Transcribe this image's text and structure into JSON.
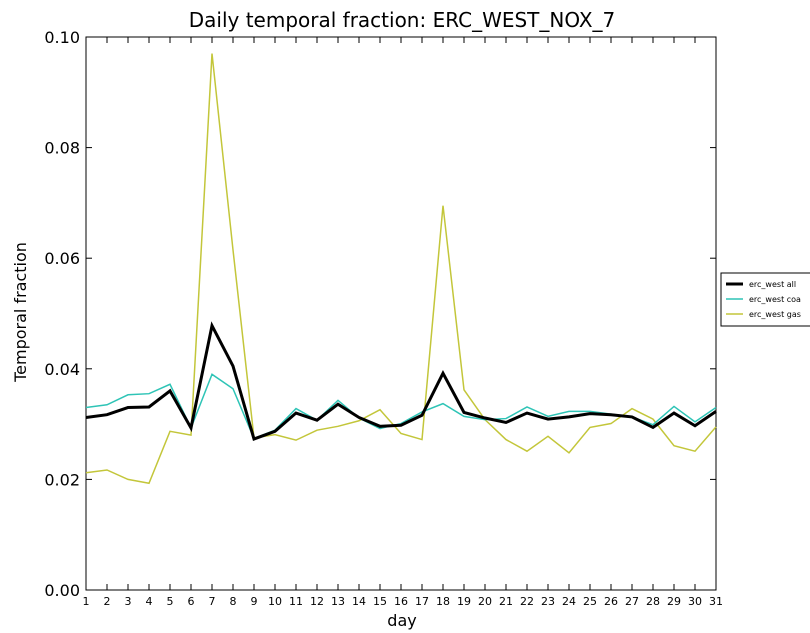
{
  "chart_data": {
    "type": "line",
    "title": "Daily temporal fraction: ERC_WEST_NOX_7",
    "xlabel": "day",
    "ylabel": "Temporal fraction",
    "xlim": [
      1,
      31
    ],
    "ylim": [
      0.0,
      0.1
    ],
    "x_ticks": [
      "1",
      "2",
      "3",
      "4",
      "5",
      "6",
      "7",
      "8",
      "9",
      "10",
      "11",
      "12",
      "13",
      "14",
      "15",
      "16",
      "17",
      "18",
      "19",
      "20",
      "21",
      "22",
      "23",
      "24",
      "25",
      "26",
      "27",
      "28",
      "29",
      "30",
      "31"
    ],
    "y_ticks": [
      "0.00",
      "0.02",
      "0.04",
      "0.06",
      "0.08",
      "0.10"
    ],
    "legend_position": "right (outside plot)",
    "grid": false,
    "x": [
      1,
      2,
      3,
      4,
      5,
      6,
      7,
      8,
      9,
      10,
      11,
      12,
      13,
      14,
      15,
      16,
      17,
      18,
      19,
      20,
      21,
      22,
      23,
      24,
      25,
      26,
      27,
      28,
      29,
      30,
      31
    ],
    "series": [
      {
        "name": "erc_west all",
        "color": "#000000",
        "values": [
          0.0312,
          0.0317,
          0.033,
          0.0331,
          0.036,
          0.0293,
          0.0478,
          0.0405,
          0.0273,
          0.0287,
          0.032,
          0.0307,
          0.0336,
          0.0312,
          0.0296,
          0.0298,
          0.0316,
          0.0392,
          0.0321,
          0.0311,
          0.0303,
          0.032,
          0.0309,
          0.0313,
          0.0319,
          0.0317,
          0.0313,
          0.0294,
          0.032,
          0.0297,
          0.0323
        ]
      },
      {
        "name": "erc_west coa",
        "color": "#2ec4b6",
        "values": [
          0.033,
          0.0335,
          0.0353,
          0.0355,
          0.0372,
          0.0293,
          0.039,
          0.0364,
          0.0274,
          0.0289,
          0.0328,
          0.0307,
          0.0343,
          0.0311,
          0.0292,
          0.0301,
          0.0322,
          0.0337,
          0.0314,
          0.0308,
          0.031,
          0.0331,
          0.0314,
          0.0323,
          0.0323,
          0.0318,
          0.0313,
          0.0299,
          0.0332,
          0.0304,
          0.033
        ]
      },
      {
        "name": "erc_west gas",
        "color": "#c3c63a",
        "values": [
          0.0212,
          0.0217,
          0.02,
          0.0193,
          0.0287,
          0.028,
          0.097,
          0.0615,
          0.0275,
          0.0281,
          0.0271,
          0.0289,
          0.0296,
          0.0306,
          0.0326,
          0.0283,
          0.0272,
          0.0695,
          0.0362,
          0.0308,
          0.0272,
          0.0251,
          0.0278,
          0.0248,
          0.0294,
          0.0301,
          0.0328,
          0.0309,
          0.0261,
          0.0251,
          0.0295
        ]
      }
    ]
  }
}
